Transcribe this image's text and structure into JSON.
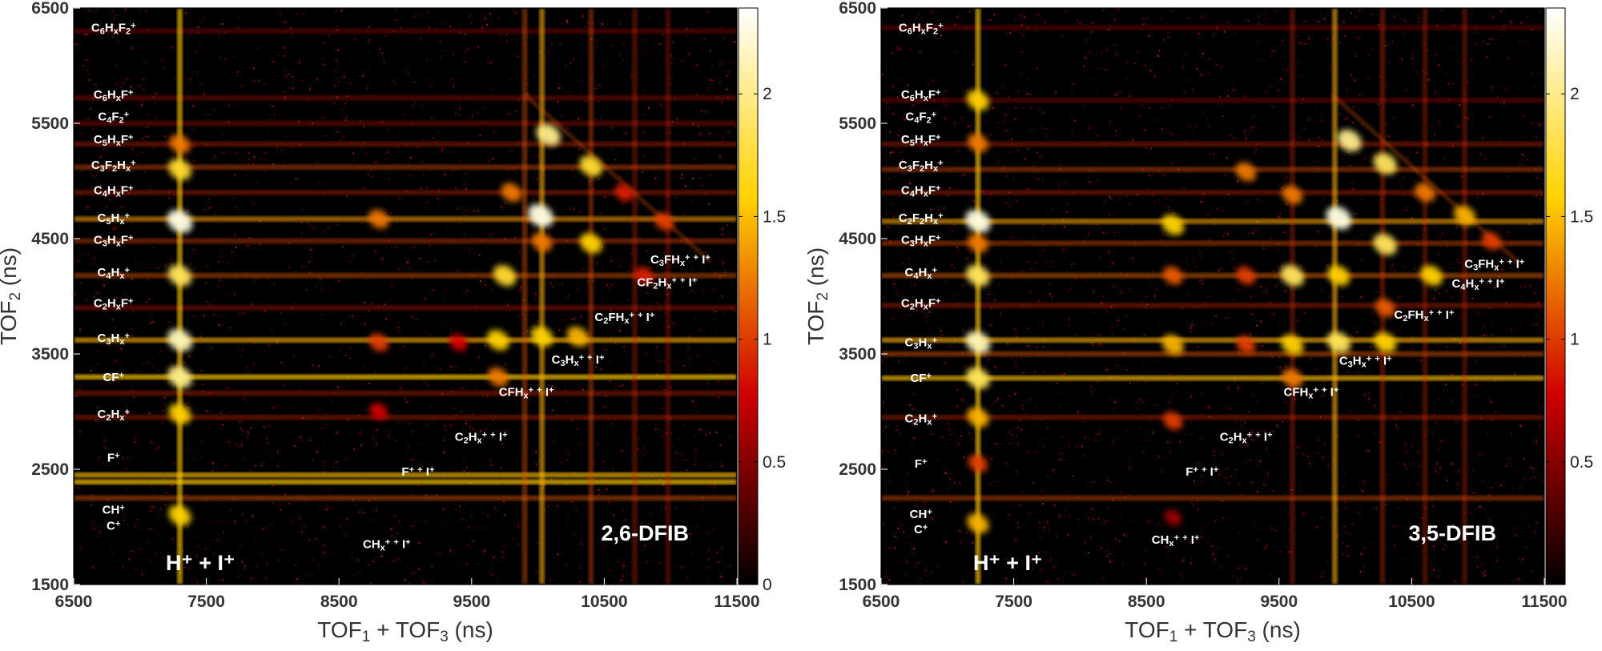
{
  "chart_data": [
    {
      "type": "heatmap",
      "title": "2,6-DFIB",
      "xlabel": "TOF1 + TOF3 (ns)",
      "ylabel": "TOF2 (ns)",
      "xlim": [
        6500,
        11500
      ],
      "ylim": [
        1500,
        6500
      ],
      "x_ticks": [
        "6500",
        "7500",
        "8500",
        "9500",
        "10500",
        "11500"
      ],
      "y_ticks": [
        "1500",
        "2500",
        "3500",
        "4500",
        "5500",
        "6500"
      ],
      "colorbar": {
        "range": [
          0,
          2.35
        ],
        "ticks": [
          "0",
          "0.5",
          "1",
          "1.5",
          "2"
        ]
      },
      "corner_label": "H⁺ + I⁺",
      "h_lines": [
        {
          "y": 6300,
          "w": 0.15
        },
        {
          "y": 5720,
          "w": 0.2
        },
        {
          "y": 5500,
          "w": 0.2
        },
        {
          "y": 5320,
          "w": 0.3
        },
        {
          "y": 5120,
          "w": 0.45
        },
        {
          "y": 4900,
          "w": 0.3
        },
        {
          "y": 4670,
          "w": 0.75
        },
        {
          "y": 4480,
          "w": 0.4
        },
        {
          "y": 4180,
          "w": 0.5
        },
        {
          "y": 3900,
          "w": 0.25
        },
        {
          "y": 3620,
          "w": 0.85
        },
        {
          "y": 3300,
          "w": 0.95
        },
        {
          "y": 3160,
          "w": 0.3
        },
        {
          "y": 2950,
          "w": 0.3
        },
        {
          "y": 2450,
          "w": 0.9
        },
        {
          "y": 2390,
          "w": 0.95
        },
        {
          "y": 2250,
          "w": 0.5
        }
      ],
      "v_lines": [
        {
          "x": 7300,
          "w": 0.95
        },
        {
          "x": 9900,
          "w": 0.5
        },
        {
          "x": 10030,
          "w": 0.85
        },
        {
          "x": 10400,
          "w": 0.45
        },
        {
          "x": 10730,
          "w": 0.3
        },
        {
          "x": 10980,
          "w": 0.25
        }
      ],
      "spots": [
        {
          "x": 7300,
          "y": 4650,
          "v": 1.0
        },
        {
          "x": 7300,
          "y": 3620,
          "v": 0.95
        },
        {
          "x": 7300,
          "y": 5100,
          "v": 0.8
        },
        {
          "x": 7300,
          "y": 4180,
          "v": 0.85
        },
        {
          "x": 7300,
          "y": 3300,
          "v": 0.9
        },
        {
          "x": 7300,
          "y": 2980,
          "v": 0.75
        },
        {
          "x": 7300,
          "y": 2100,
          "v": 0.75
        },
        {
          "x": 7300,
          "y": 5320,
          "v": 0.6
        },
        {
          "x": 8800,
          "y": 4670,
          "v": 0.6
        },
        {
          "x": 8800,
          "y": 3600,
          "v": 0.5
        },
        {
          "x": 9400,
          "y": 3600,
          "v": 0.4
        },
        {
          "x": 9750,
          "y": 4180,
          "v": 0.8
        },
        {
          "x": 9800,
          "y": 4900,
          "v": 0.6
        },
        {
          "x": 9700,
          "y": 3620,
          "v": 0.75
        },
        {
          "x": 9700,
          "y": 3300,
          "v": 0.6
        },
        {
          "x": 10020,
          "y": 4700,
          "v": 1.0
        },
        {
          "x": 10080,
          "y": 5400,
          "v": 0.9
        },
        {
          "x": 10400,
          "y": 5130,
          "v": 0.8
        },
        {
          "x": 10400,
          "y": 4460,
          "v": 0.75
        },
        {
          "x": 10300,
          "y": 3650,
          "v": 0.7
        },
        {
          "x": 10030,
          "y": 3650,
          "v": 0.75
        },
        {
          "x": 10030,
          "y": 4470,
          "v": 0.6
        },
        {
          "x": 10800,
          "y": 4180,
          "v": 0.45
        },
        {
          "x": 10950,
          "y": 4650,
          "v": 0.5
        },
        {
          "x": 10650,
          "y": 4900,
          "v": 0.45
        },
        {
          "x": 8800,
          "y": 3000,
          "v": 0.4
        }
      ],
      "labels": [
        {
          "text": "C6HxF2+",
          "x": 6800,
          "y": 6330
        },
        {
          "text": "C6HxF+",
          "x": 6800,
          "y": 5750
        },
        {
          "text": "C4F2+",
          "x": 6800,
          "y": 5560
        },
        {
          "text": "C5HxF+",
          "x": 6800,
          "y": 5360
        },
        {
          "text": "C3F2Hx+",
          "x": 6800,
          "y": 5140
        },
        {
          "text": "C4HxF+",
          "x": 6800,
          "y": 4920
        },
        {
          "text": "C5Hx+",
          "x": 6800,
          "y": 4680
        },
        {
          "text": "C3HxF+",
          "x": 6800,
          "y": 4490
        },
        {
          "text": "C4Hx+",
          "x": 6800,
          "y": 4210
        },
        {
          "text": "C2HxF+",
          "x": 6800,
          "y": 3940
        },
        {
          "text": "C3Hx+",
          "x": 6800,
          "y": 3640
        },
        {
          "text": "CF+",
          "x": 6800,
          "y": 3300
        },
        {
          "text": "C2Hx+",
          "x": 6800,
          "y": 2980
        },
        {
          "text": "F+",
          "x": 6800,
          "y": 2600
        },
        {
          "text": "CH+",
          "x": 6800,
          "y": 2150
        },
        {
          "text": "C+",
          "x": 6800,
          "y": 2010
        },
        {
          "text": "C3FHx+ + I+",
          "x": 11300,
          "y": 4320
        },
        {
          "text": "CF2Hx+ + I+",
          "x": 11200,
          "y": 4120
        },
        {
          "text": "C2FHx+ + I+",
          "x": 10880,
          "y": 3820
        },
        {
          "text": "C3Hx+ + I+",
          "x": 10500,
          "y": 3450
        },
        {
          "text": "CFHx+ + I+",
          "x": 10120,
          "y": 3170
        },
        {
          "text": "C2Hx+ + I+",
          "x": 9770,
          "y": 2780
        },
        {
          "text": "F+ + I+",
          "x": 9220,
          "y": 2480
        },
        {
          "text": "CHx+ + I+",
          "x": 8860,
          "y": 1850
        }
      ]
    },
    {
      "type": "heatmap",
      "title": "3,5-DFIB",
      "xlabel": "TOF1 + TOF3 (ns)",
      "ylabel": "TOF2 (ns)",
      "xlim": [
        6500,
        11500
      ],
      "ylim": [
        1500,
        6500
      ],
      "x_ticks": [
        "6500",
        "7500",
        "8500",
        "9500",
        "10500",
        "11500"
      ],
      "y_ticks": [
        "1500",
        "2500",
        "3500",
        "4500",
        "5500",
        "6500"
      ],
      "colorbar": {
        "range": [
          0,
          2.35
        ],
        "ticks": [
          "0.5",
          "1",
          "1.5",
          "2"
        ]
      },
      "corner_label": "H⁺ + I⁺",
      "h_lines": [
        {
          "y": 6330,
          "w": 0.12
        },
        {
          "y": 5700,
          "w": 0.15
        },
        {
          "y": 5320,
          "w": 0.3
        },
        {
          "y": 5100,
          "w": 0.45
        },
        {
          "y": 4900,
          "w": 0.3
        },
        {
          "y": 4650,
          "w": 0.8
        },
        {
          "y": 4460,
          "w": 0.45
        },
        {
          "y": 4180,
          "w": 0.55
        },
        {
          "y": 3920,
          "w": 0.3
        },
        {
          "y": 3620,
          "w": 0.85
        },
        {
          "y": 3500,
          "w": 0.5
        },
        {
          "y": 3290,
          "w": 0.9
        },
        {
          "y": 2950,
          "w": 0.3
        },
        {
          "y": 2250,
          "w": 0.45
        }
      ],
      "v_lines": [
        {
          "x": 7230,
          "w": 0.95
        },
        {
          "x": 9920,
          "w": 0.85
        },
        {
          "x": 10280,
          "w": 0.35
        },
        {
          "x": 9600,
          "w": 0.3
        },
        {
          "x": 10600,
          "w": 0.3
        },
        {
          "x": 10900,
          "w": 0.3
        }
      ],
      "spots": [
        {
          "x": 7230,
          "y": 4650,
          "v": 1.0
        },
        {
          "x": 7230,
          "y": 3600,
          "v": 0.95
        },
        {
          "x": 7230,
          "y": 5700,
          "v": 0.75
        },
        {
          "x": 7230,
          "y": 4180,
          "v": 0.85
        },
        {
          "x": 7230,
          "y": 3290,
          "v": 0.85
        },
        {
          "x": 7230,
          "y": 2950,
          "v": 0.7
        },
        {
          "x": 7230,
          "y": 2030,
          "v": 0.7
        },
        {
          "x": 7230,
          "y": 5330,
          "v": 0.6
        },
        {
          "x": 7230,
          "y": 4460,
          "v": 0.6
        },
        {
          "x": 7230,
          "y": 2550,
          "v": 0.5
        },
        {
          "x": 8700,
          "y": 4620,
          "v": 0.75
        },
        {
          "x": 8700,
          "y": 3580,
          "v": 0.7
        },
        {
          "x": 8700,
          "y": 4180,
          "v": 0.55
        },
        {
          "x": 8700,
          "y": 2920,
          "v": 0.5
        },
        {
          "x": 9250,
          "y": 5080,
          "v": 0.6
        },
        {
          "x": 9250,
          "y": 4180,
          "v": 0.5
        },
        {
          "x": 9250,
          "y": 3580,
          "v": 0.5
        },
        {
          "x": 9600,
          "y": 4180,
          "v": 0.85
        },
        {
          "x": 9600,
          "y": 3580,
          "v": 0.75
        },
        {
          "x": 9600,
          "y": 4880,
          "v": 0.6
        },
        {
          "x": 9600,
          "y": 3290,
          "v": 0.6
        },
        {
          "x": 9950,
          "y": 4680,
          "v": 1.0
        },
        {
          "x": 10030,
          "y": 5350,
          "v": 0.9
        },
        {
          "x": 10300,
          "y": 5150,
          "v": 0.85
        },
        {
          "x": 10300,
          "y": 4450,
          "v": 0.85
        },
        {
          "x": 10300,
          "y": 3600,
          "v": 0.75
        },
        {
          "x": 9950,
          "y": 3600,
          "v": 0.85
        },
        {
          "x": 9950,
          "y": 4180,
          "v": 0.75
        },
        {
          "x": 10600,
          "y": 4900,
          "v": 0.6
        },
        {
          "x": 10650,
          "y": 4180,
          "v": 0.75
        },
        {
          "x": 10900,
          "y": 4700,
          "v": 0.7
        },
        {
          "x": 10300,
          "y": 3900,
          "v": 0.55
        },
        {
          "x": 11100,
          "y": 4480,
          "v": 0.5
        },
        {
          "x": 8700,
          "y": 2080,
          "v": 0.3
        }
      ],
      "labels": [
        {
          "text": "C6HxF2+",
          "x": 6800,
          "y": 6330
        },
        {
          "text": "C6HxF+",
          "x": 6800,
          "y": 5750
        },
        {
          "text": "C4F2+",
          "x": 6800,
          "y": 5560
        },
        {
          "text": "C5HxF+",
          "x": 6800,
          "y": 5360
        },
        {
          "text": "C3F2Hx+",
          "x": 6800,
          "y": 5140
        },
        {
          "text": "C4HxF+",
          "x": 6800,
          "y": 4920
        },
        {
          "text": "C2F2Hx+",
          "x": 6800,
          "y": 4680
        },
        {
          "text": "C3HxF+",
          "x": 6800,
          "y": 4490
        },
        {
          "text": "C4Hx+",
          "x": 6800,
          "y": 4210
        },
        {
          "text": "C2HxF+",
          "x": 6800,
          "y": 3940
        },
        {
          "text": "C3Hx+",
          "x": 6800,
          "y": 3600
        },
        {
          "text": "CF+",
          "x": 6800,
          "y": 3290
        },
        {
          "text": "C2Hx+",
          "x": 6800,
          "y": 2940
        },
        {
          "text": "F+",
          "x": 6800,
          "y": 2550
        },
        {
          "text": "CH+",
          "x": 6800,
          "y": 2110
        },
        {
          "text": "C+",
          "x": 6800,
          "y": 1980
        },
        {
          "text": "C3FHx+ + I+",
          "x": 11350,
          "y": 4280
        },
        {
          "text": "C4Hx+ + I+",
          "x": 11200,
          "y": 4110
        },
        {
          "text": "C2FHx+ + I+",
          "x": 10820,
          "y": 3840
        },
        {
          "text": "C3Hx+ + I+",
          "x": 10350,
          "y": 3440
        },
        {
          "text": "CFHx+ + I+",
          "x": 9950,
          "y": 3170
        },
        {
          "text": "C2Hx+ + I+",
          "x": 9450,
          "y": 2780
        },
        {
          "text": "F+ + I+",
          "x": 8920,
          "y": 2480
        },
        {
          "text": "CHx+ + I+",
          "x": 8720,
          "y": 1890
        }
      ]
    }
  ]
}
